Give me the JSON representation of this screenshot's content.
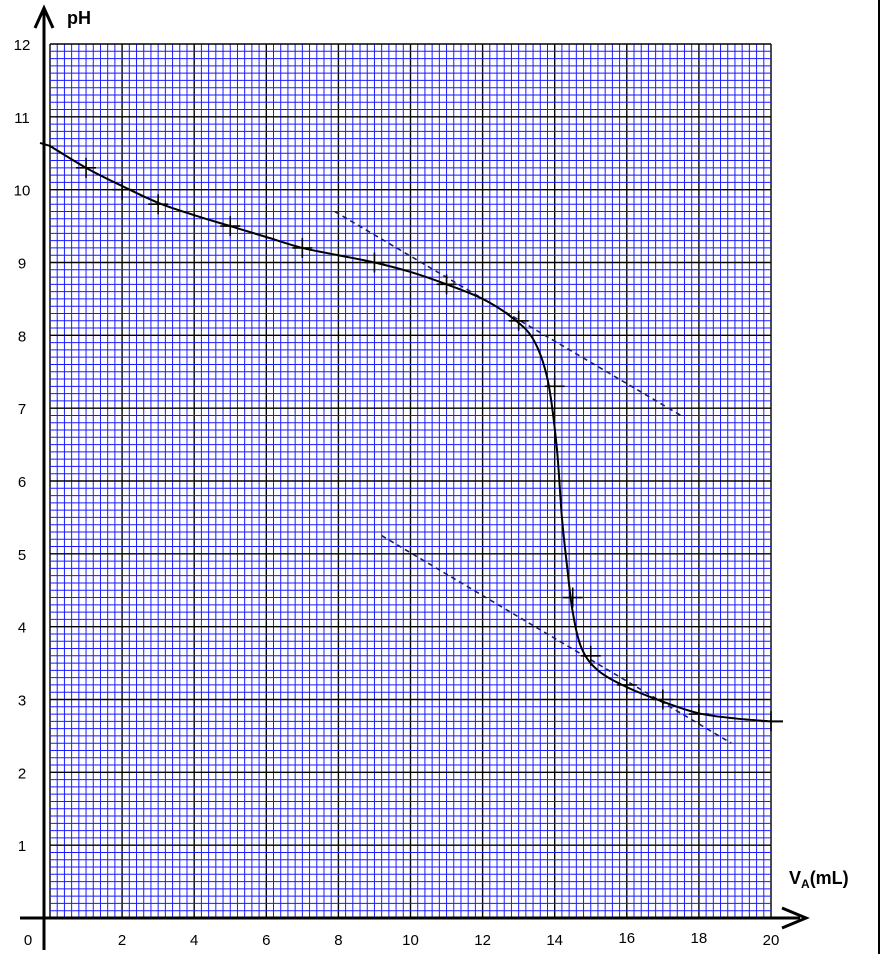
{
  "chart_data": {
    "type": "line",
    "title": "",
    "ylabel": "pH",
    "xlabel_main": "V",
    "xlabel_sub": "A",
    "xlabel_unit": "(mL)",
    "origin_label": "0",
    "xlim": [
      0,
      20
    ],
    "ylim": [
      0,
      12
    ],
    "x_ticks": [
      2,
      4,
      6,
      8,
      10,
      12,
      14,
      16,
      18,
      20
    ],
    "y_ticks": [
      1,
      2,
      3,
      4,
      5,
      6,
      7,
      8,
      9,
      10,
      11,
      12
    ],
    "grid": true,
    "grid_color": "#1a1aff",
    "curve_color": "#000000",
    "series": [
      {
        "markers": [
          [
            1,
            10.3
          ],
          [
            2,
            10.0
          ],
          [
            3,
            9.8
          ],
          [
            5,
            9.5
          ],
          [
            7,
            9.2
          ],
          [
            9,
            9.0
          ],
          [
            11,
            8.7
          ],
          [
            13,
            8.2
          ],
          [
            14,
            7.3
          ],
          [
            14.5,
            4.4
          ],
          [
            15,
            3.6
          ],
          [
            16,
            3.2
          ],
          [
            17,
            3.0
          ],
          [
            18,
            2.8
          ],
          [
            20,
            2.7
          ]
        ],
        "curve": [
          [
            0,
            10.6
          ],
          [
            1,
            10.3
          ],
          [
            2,
            10.05
          ],
          [
            3,
            9.82
          ],
          [
            4,
            9.65
          ],
          [
            5,
            9.5
          ],
          [
            6,
            9.35
          ],
          [
            7,
            9.2
          ],
          [
            8,
            9.1
          ],
          [
            9,
            9.0
          ],
          [
            10,
            8.87
          ],
          [
            11,
            8.7
          ],
          [
            12,
            8.5
          ],
          [
            12.8,
            8.25
          ],
          [
            13.4,
            7.95
          ],
          [
            13.8,
            7.4
          ],
          [
            14.05,
            6.5
          ],
          [
            14.2,
            5.5
          ],
          [
            14.35,
            4.8
          ],
          [
            14.5,
            4.2
          ],
          [
            14.75,
            3.7
          ],
          [
            15.2,
            3.4
          ],
          [
            16,
            3.17
          ],
          [
            17,
            2.97
          ],
          [
            18,
            2.81
          ],
          [
            19,
            2.74
          ],
          [
            20,
            2.7
          ]
        ]
      }
    ],
    "tangent_lines": [
      {
        "from": [
          7.9,
          9.7
        ],
        "to": [
          17.5,
          6.9
        ]
      },
      {
        "from": [
          9.2,
          5.25
        ],
        "to": [
          18.9,
          2.4
        ]
      }
    ]
  }
}
